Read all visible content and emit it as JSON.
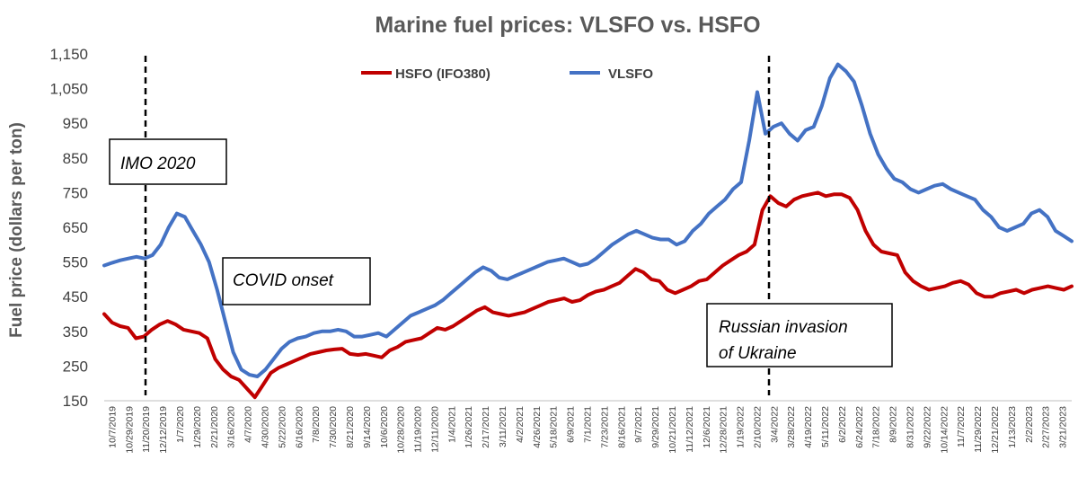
{
  "chart_data": {
    "type": "line",
    "title": "Marine fuel prices: VLSFO vs. HSFO",
    "ylabel": "Fuel price  (dollars per ton)",
    "xlabel": "",
    "ylim": [
      150,
      1150
    ],
    "yticks": [
      "1,150",
      "1,050",
      "950",
      "850",
      "750",
      "650",
      "550",
      "450",
      "350",
      "250",
      "150"
    ],
    "x_tick_labels": [
      "10/7/2019",
      "10/29/2019",
      "11/20/2019",
      "12/12/2019",
      "1/7/2020",
      "1/29/2020",
      "2/21/2020",
      "3/16/2020",
      "4/7/2020",
      "4/30/2020",
      "5/22/2020",
      "6/16/2020",
      "7/8/2020",
      "7/30/2020",
      "8/21/2020",
      "9/14/2020",
      "10/6/2020",
      "10/28/2020",
      "11/19/2020",
      "12/11/2020",
      "1/4/2021",
      "1/26/2021",
      "2/17/2021",
      "3/11/2021",
      "4/2/2021",
      "4/26/2021",
      "5/18/2021",
      "6/9/2021",
      "7/1/2021",
      "7/23/2021",
      "8/16/2021",
      "9/7/2021",
      "9/29/2021",
      "10/21/2021",
      "11/12/2021",
      "12/6/2021",
      "12/28/2021",
      "1/19/2022",
      "2/10/2022",
      "3/4/2022",
      "3/28/2022",
      "4/19/2022",
      "5/11/2022",
      "6/2/2022",
      "6/24/2022",
      "7/18/2022",
      "8/9/2022",
      "8/31/2022",
      "9/22/2022",
      "10/14/2022",
      "11/7/2022",
      "11/29/2022",
      "12/21/2022",
      "1/13/2023",
      "2/2/2023",
      "2/27/2023",
      "3/21/2023"
    ],
    "grid": false,
    "legend": "top-center",
    "series": [
      {
        "name": "HSFO (IFO380)",
        "color": "#c00000",
        "values": [
          400,
          375,
          365,
          360,
          330,
          335,
          355,
          370,
          380,
          370,
          355,
          350,
          345,
          330,
          270,
          240,
          220,
          210,
          185,
          160,
          195,
          230,
          245,
          255,
          265,
          275,
          285,
          290,
          295,
          298,
          300,
          285,
          282,
          285,
          280,
          275,
          295,
          305,
          320,
          325,
          330,
          345,
          360,
          355,
          365,
          380,
          395,
          410,
          420,
          405,
          400,
          395,
          400,
          405,
          415,
          425,
          435,
          440,
          445,
          435,
          440,
          455,
          465,
          470,
          480,
          490,
          510,
          530,
          520,
          500,
          495,
          470,
          460,
          470,
          480,
          495,
          500,
          520,
          540,
          555,
          570,
          580,
          600,
          700,
          740,
          720,
          710,
          730,
          740,
          745,
          750,
          740,
          745,
          745,
          735,
          700,
          640,
          600,
          580,
          575,
          570,
          520,
          495,
          480,
          470,
          475,
          480,
          490,
          495,
          485,
          460,
          450,
          450,
          460,
          465,
          470,
          460,
          470,
          475,
          480,
          475,
          470,
          480
        ],
        "marks": "time-series line, red"
      },
      {
        "name": "VLSFO",
        "color": "#4472c4",
        "values": [
          540,
          548,
          555,
          560,
          565,
          560,
          570,
          600,
          650,
          690,
          680,
          640,
          600,
          550,
          470,
          380,
          290,
          240,
          225,
          220,
          240,
          270,
          300,
          320,
          330,
          335,
          345,
          350,
          350,
          355,
          350,
          335,
          335,
          340,
          345,
          335,
          355,
          375,
          395,
          405,
          415,
          425,
          440,
          460,
          480,
          500,
          520,
          535,
          525,
          505,
          500,
          510,
          520,
          530,
          540,
          550,
          555,
          560,
          550,
          540,
          545,
          560,
          580,
          600,
          615,
          630,
          640,
          630,
          620,
          615,
          615,
          600,
          610,
          640,
          660,
          690,
          710,
          730,
          760,
          780,
          900,
          1040,
          920,
          940,
          950,
          920,
          900,
          930,
          940,
          1000,
          1080,
          1120,
          1100,
          1070,
          1000,
          920,
          860,
          820,
          790,
          780,
          760,
          750,
          760,
          770,
          775,
          760,
          750,
          740,
          730,
          700,
          680,
          650,
          640,
          650,
          660,
          690,
          700,
          680,
          640,
          625,
          610
        ]
      }
    ],
    "annotations": [
      {
        "label": "IMO 2020",
        "date": "1/1/2020"
      },
      {
        "label": "COVID onset",
        "date": "3/2020"
      },
      {
        "label_line1": "Russian invasion",
        "label_line2": "of Ukraine",
        "date": "2/24/2022"
      }
    ]
  }
}
